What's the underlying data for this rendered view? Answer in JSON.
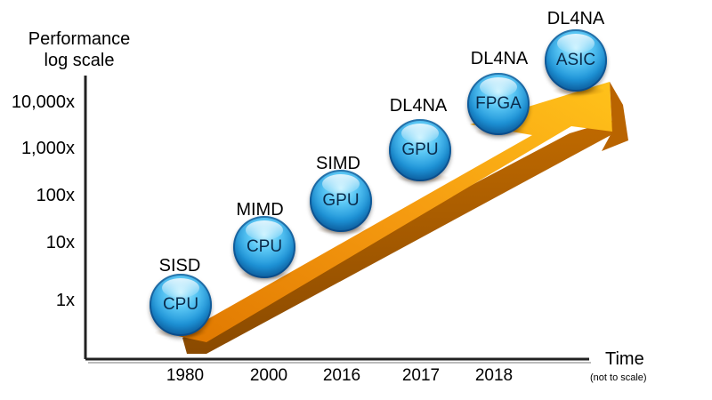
{
  "y_axis": {
    "title_line1": "Performance",
    "title_line2": "log scale",
    "ticks": [
      "10,000x",
      "1,000x",
      "100x",
      "10x",
      "1x"
    ]
  },
  "x_axis": {
    "title": "Time",
    "subtitle": "(not to scale)",
    "ticks": [
      "1980",
      "2000",
      "2016",
      "2017",
      "2018"
    ]
  },
  "stages": [
    {
      "architecture": "SISD",
      "processor": "CPU"
    },
    {
      "architecture": "MIMD",
      "processor": "CPU"
    },
    {
      "architecture": "SIMD",
      "processor": "GPU"
    },
    {
      "architecture": "DL4NA",
      "processor": "GPU"
    },
    {
      "architecture": "DL4NA",
      "processor": "FPGA"
    },
    {
      "architecture": "DL4NA",
      "processor": "ASIC"
    }
  ],
  "colors": {
    "arrow_light": "#ffc21a",
    "arrow_dark": "#e07800",
    "arrow_side": "#a85a00",
    "sphere": "#1e94d8"
  }
}
